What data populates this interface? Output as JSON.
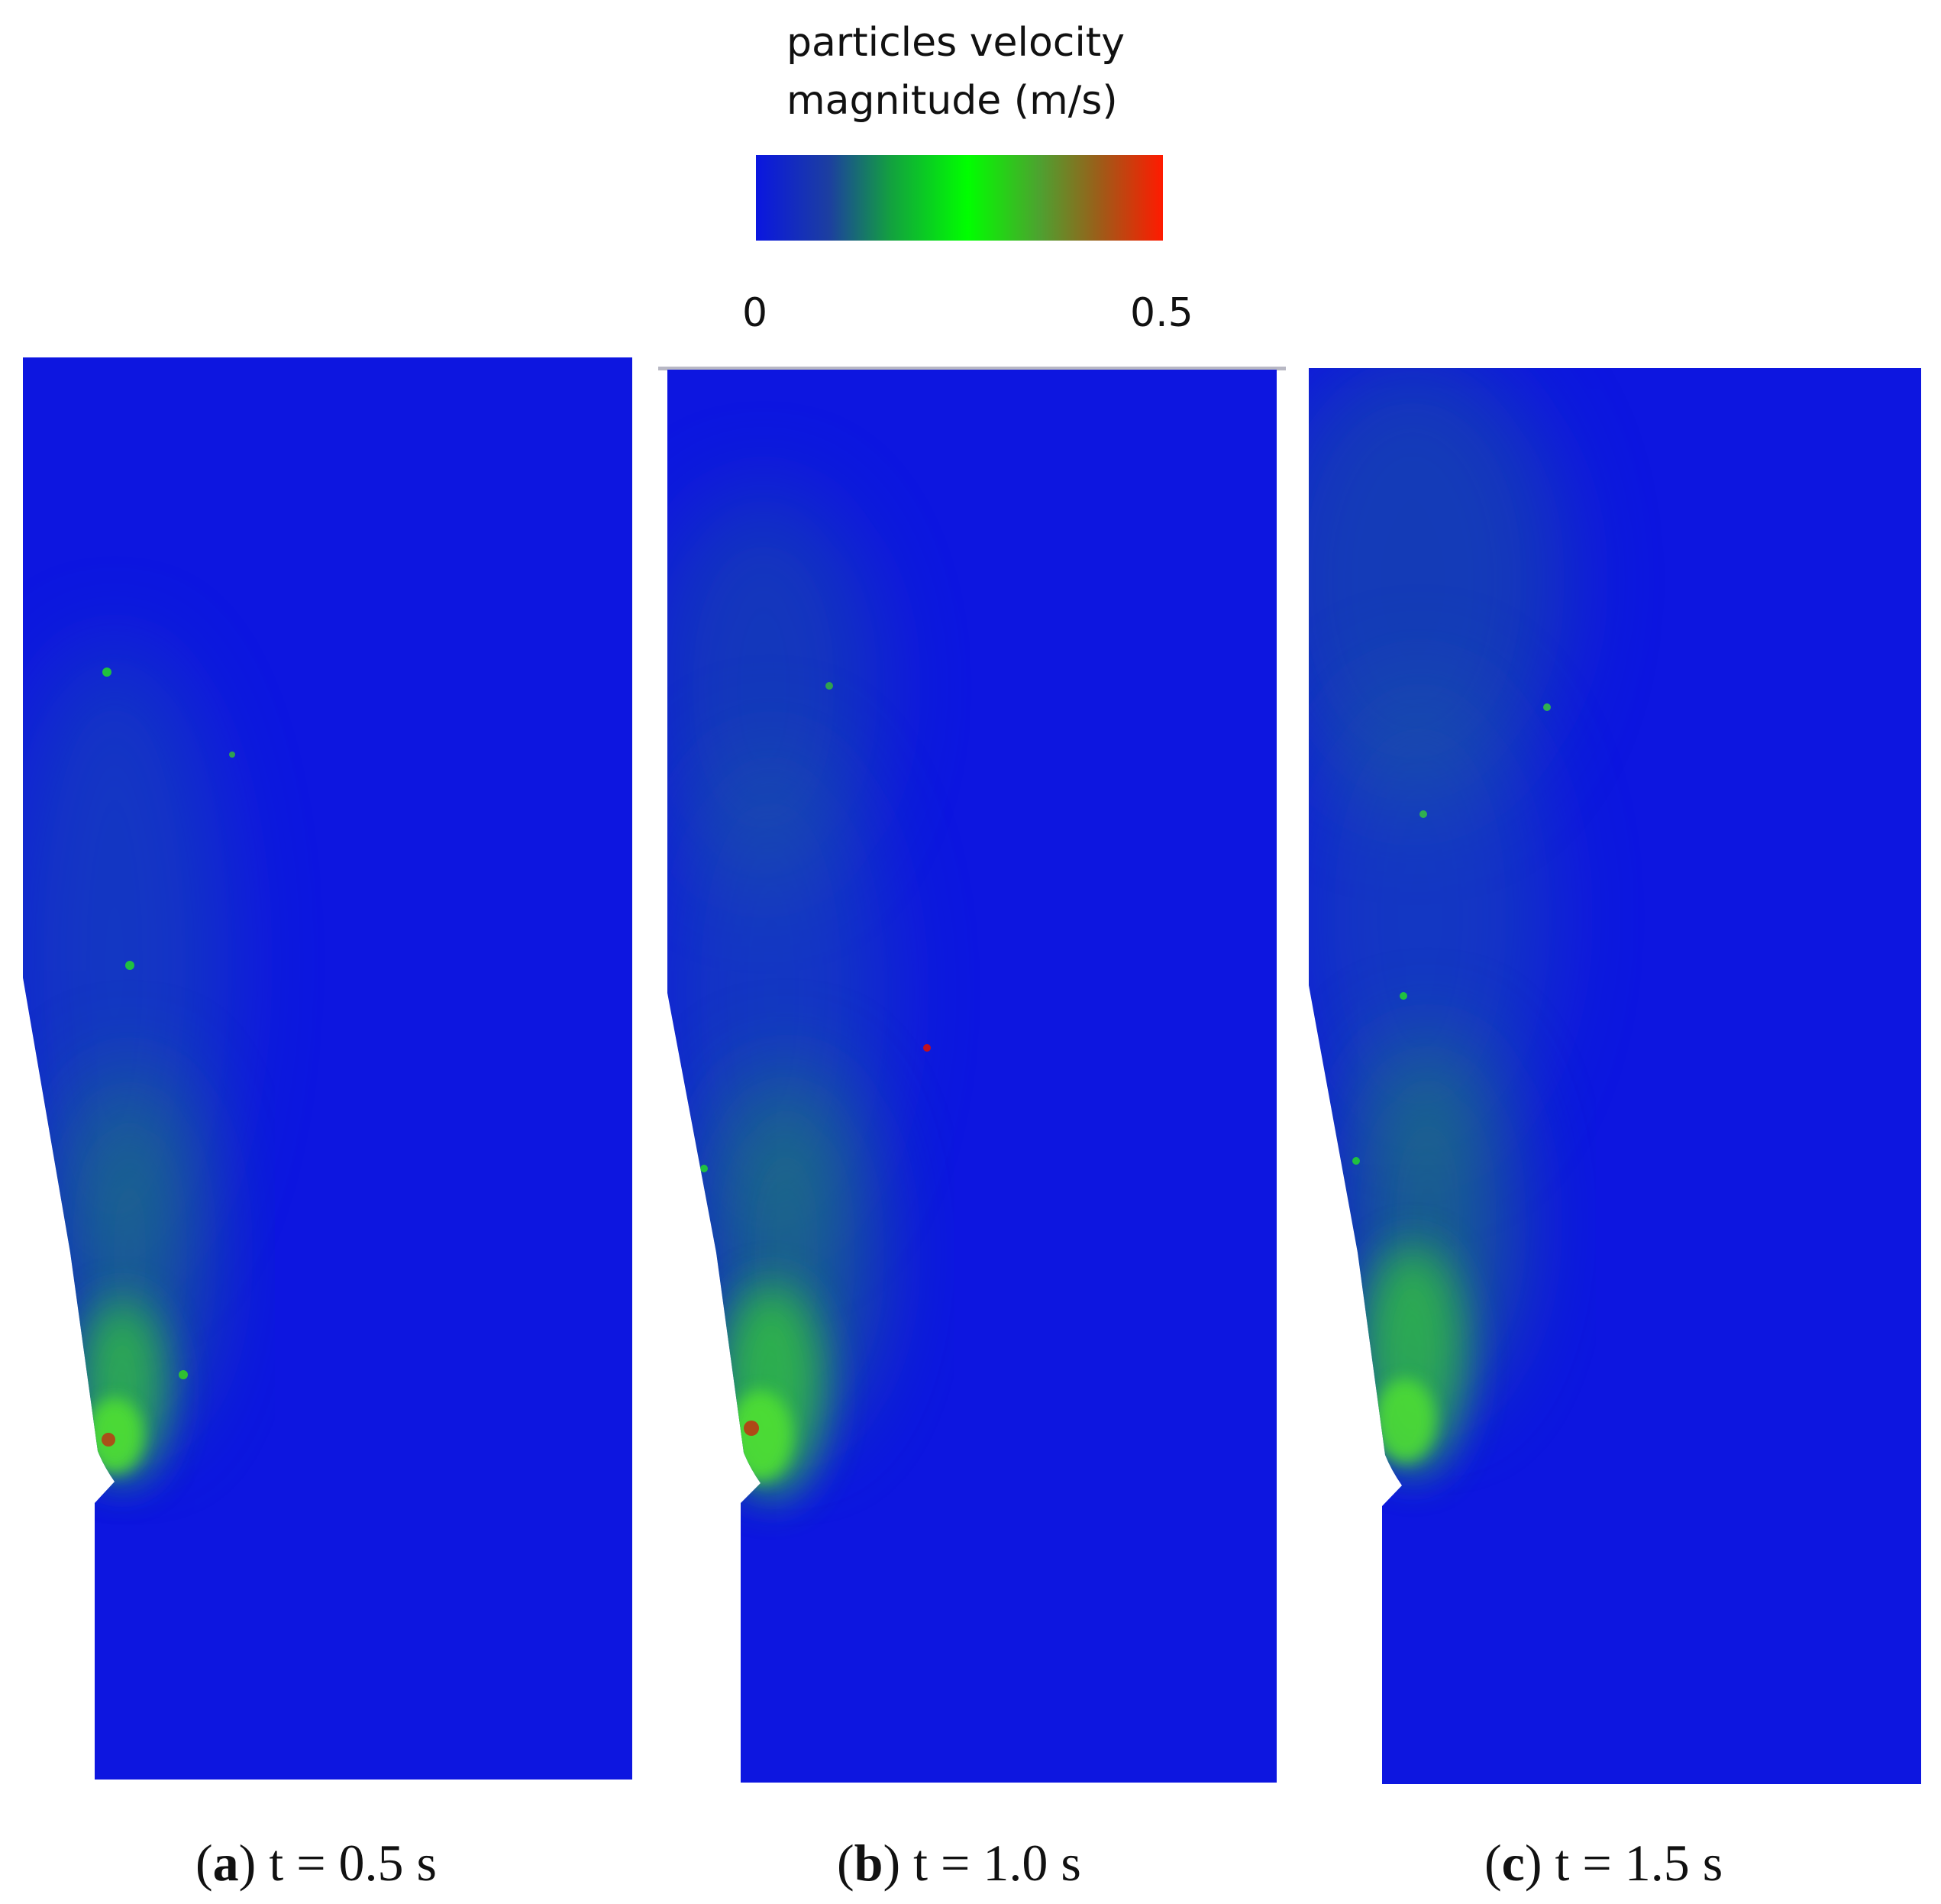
{
  "legend": {
    "title_line1": "particles velocity",
    "title_line2": "magnitude  (m/s)",
    "min_label": "0",
    "max_label": "0.5",
    "colors": [
      "#0a16e0",
      "#00ff00",
      "#ff1a00"
    ]
  },
  "panels": [
    {
      "letter": "a",
      "time_label": "t = 0.5 s"
    },
    {
      "letter": "b",
      "time_label": "t = 1.0 s"
    },
    {
      "letter": "c",
      "time_label": "t = 1.5 s"
    }
  ],
  "colors": {
    "field": "#0a16e0",
    "fast": "#00ff00",
    "peak": "#ff1a00"
  }
}
